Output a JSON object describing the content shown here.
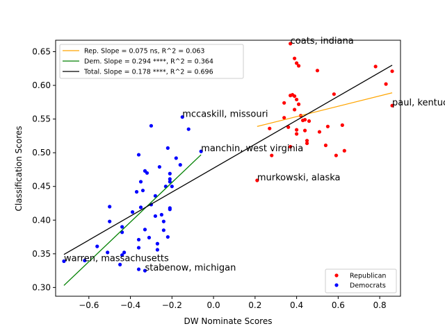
{
  "chart_data": {
    "type": "scatter",
    "xlabel": "DW Nominate Scores",
    "ylabel": "Classification Scores",
    "xlim": [
      -0.76,
      0.9
    ],
    "ylim": [
      0.287,
      0.667
    ],
    "xticks": [
      -0.6,
      -0.4,
      -0.2,
      0.0,
      0.2,
      0.4,
      0.6,
      0.8
    ],
    "xtick_labels": [
      "−0.6",
      "−0.4",
      "−0.2",
      "0.0",
      "0.2",
      "0.4",
      "0.6",
      "0.8"
    ],
    "yticks": [
      0.3,
      0.35,
      0.4,
      0.45,
      0.5,
      0.55,
      0.6,
      0.65
    ],
    "ytick_labels": [
      "0.30",
      "0.35",
      "0.40",
      "0.45",
      "0.50",
      "0.55",
      "0.60",
      "0.65"
    ],
    "grid": false,
    "series": [
      {
        "name": "Republican",
        "color": "#ff0000",
        "points": [
          [
            0.37,
            0.662
          ],
          [
            0.39,
            0.64
          ],
          [
            0.4,
            0.633
          ],
          [
            0.41,
            0.629
          ],
          [
            0.5,
            0.622
          ],
          [
            0.78,
            0.628
          ],
          [
            0.86,
            0.621
          ],
          [
            0.83,
            0.602
          ],
          [
            0.37,
            0.585
          ],
          [
            0.38,
            0.586
          ],
          [
            0.39,
            0.584
          ],
          [
            0.4,
            0.579
          ],
          [
            0.58,
            0.587
          ],
          [
            0.34,
            0.574
          ],
          [
            0.41,
            0.572
          ],
          [
            0.39,
            0.564
          ],
          [
            0.86,
            0.57
          ],
          [
            0.42,
            0.555
          ],
          [
            0.44,
            0.549
          ],
          [
            0.46,
            0.547
          ],
          [
            0.34,
            0.552
          ],
          [
            0.36,
            0.538
          ],
          [
            0.43,
            0.548
          ],
          [
            0.62,
            0.541
          ],
          [
            0.55,
            0.539
          ],
          [
            0.27,
            0.536
          ],
          [
            0.4,
            0.534
          ],
          [
            0.4,
            0.528
          ],
          [
            0.44,
            0.533
          ],
          [
            0.51,
            0.531
          ],
          [
            0.45,
            0.518
          ],
          [
            0.45,
            0.514
          ],
          [
            0.37,
            0.509
          ],
          [
            0.54,
            0.511
          ],
          [
            0.28,
            0.496
          ],
          [
            0.59,
            0.496
          ],
          [
            0.63,
            0.503
          ],
          [
            0.21,
            0.459
          ]
        ]
      },
      {
        "name": "Democrats",
        "color": "#0000ff",
        "points": [
          [
            -0.72,
            0.339
          ],
          [
            -0.62,
            0.34
          ],
          [
            -0.56,
            0.361
          ],
          [
            -0.51,
            0.352
          ],
          [
            -0.5,
            0.42
          ],
          [
            -0.5,
            0.398
          ],
          [
            -0.45,
            0.334
          ],
          [
            -0.44,
            0.39
          ],
          [
            -0.44,
            0.382
          ],
          [
            -0.43,
            0.352
          ],
          [
            -0.44,
            0.348
          ],
          [
            -0.39,
            0.412
          ],
          [
            -0.37,
            0.442
          ],
          [
            -0.36,
            0.371
          ],
          [
            -0.36,
            0.359
          ],
          [
            -0.36,
            0.327
          ],
          [
            -0.36,
            0.497
          ],
          [
            -0.35,
            0.457
          ],
          [
            -0.34,
            0.444
          ],
          [
            -0.35,
            0.419
          ],
          [
            -0.33,
            0.386
          ],
          [
            -0.33,
            0.325
          ],
          [
            -0.32,
            0.47
          ],
          [
            -0.33,
            0.473
          ],
          [
            -0.31,
            0.374
          ],
          [
            -0.3,
            0.423
          ],
          [
            -0.3,
            0.54
          ],
          [
            -0.28,
            0.436
          ],
          [
            -0.28,
            0.406
          ],
          [
            -0.27,
            0.365
          ],
          [
            -0.27,
            0.356
          ],
          [
            -0.26,
            0.479
          ],
          [
            -0.25,
            0.408
          ],
          [
            -0.24,
            0.398
          ],
          [
            -0.24,
            0.385
          ],
          [
            -0.23,
            0.45
          ],
          [
            -0.22,
            0.507
          ],
          [
            -0.21,
            0.469
          ],
          [
            -0.21,
            0.461
          ],
          [
            -0.21,
            0.457
          ],
          [
            -0.21,
            0.418
          ],
          [
            -0.21,
            0.416
          ],
          [
            -0.22,
            0.375
          ],
          [
            -0.2,
            0.45
          ],
          [
            -0.18,
            0.492
          ],
          [
            -0.16,
            0.482
          ],
          [
            -0.15,
            0.553
          ],
          [
            -0.12,
            0.535
          ],
          [
            -0.06,
            0.502
          ]
        ]
      }
    ],
    "fit_lines": [
      {
        "name": "Rep. Slope = 0.075 ns, R^2 = 0.063",
        "color": "#ffa500",
        "x": [
          0.21,
          0.86
        ],
        "y": [
          0.539,
          0.589
        ]
      },
      {
        "name": "Dem. Slope = 0.294 ****, R^2 = 0.364",
        "color": "#008000",
        "x": [
          -0.72,
          -0.06
        ],
        "y": [
          0.303,
          0.497
        ]
      },
      {
        "name": "Total. Slope = 0.178 ****, R^2 = 0.696",
        "color": "#000000",
        "x": [
          -0.72,
          0.86
        ],
        "y": [
          0.349,
          0.63
        ]
      }
    ],
    "annotations": [
      {
        "text": "coats, indiana",
        "x": 0.37,
        "y": 0.662
      },
      {
        "text": "paul, kentucky",
        "x": 0.86,
        "y": 0.57
      },
      {
        "text": "mccaskill, missouri",
        "x": -0.15,
        "y": 0.553
      },
      {
        "text": "manchin, west virginia",
        "x": -0.06,
        "y": 0.502
      },
      {
        "text": "murkowski, alaska",
        "x": 0.21,
        "y": 0.459
      },
      {
        "text": "warren, massachusetts",
        "x": -0.72,
        "y": 0.339
      },
      {
        "text": "stabenow, michigan",
        "x": -0.33,
        "y": 0.325
      }
    ],
    "legend_fits_placement": "upper-left",
    "legend_points_placement": "lower-right"
  }
}
